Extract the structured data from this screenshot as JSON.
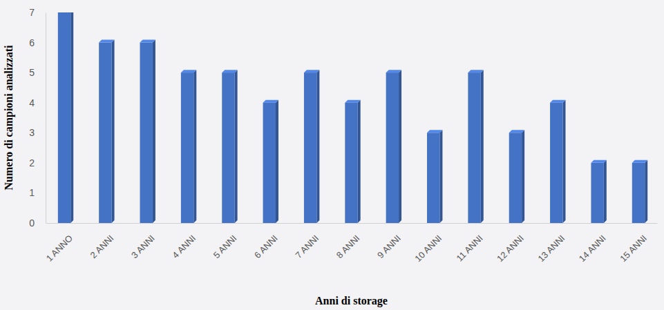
{
  "chart_data": {
    "type": "bar",
    "x_label": "Anni di storage",
    "y_label": "Numero di campioni analizzati",
    "categories": [
      "1 ANNO",
      "2 ANNI",
      "3 ANNI",
      "4 ANNI",
      "5 ANNI",
      "6 ANNI",
      "7 ANNI",
      "8 ANNI",
      "9 ANNI",
      "10 ANNI",
      "11 ANNI",
      "12 ANNI",
      "13 ANNI",
      "14 ANNI",
      "15 ANNI"
    ],
    "values": [
      7,
      6,
      6,
      5,
      5,
      4,
      5,
      4,
      5,
      3,
      5,
      3,
      4,
      2,
      2
    ],
    "color": "#4472c4",
    "ylim": [
      0,
      7
    ],
    "yticks": [
      0,
      1,
      2,
      3,
      4,
      5,
      6,
      7
    ],
    "grid": false
  }
}
